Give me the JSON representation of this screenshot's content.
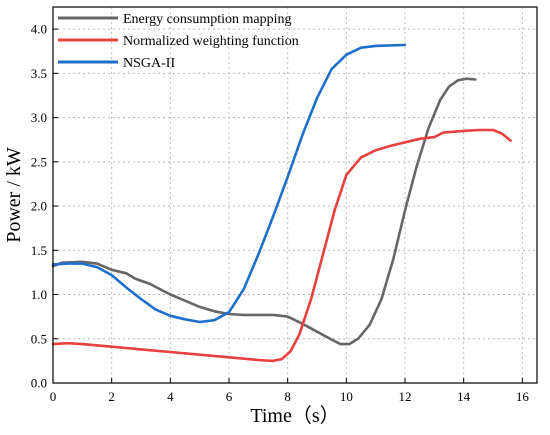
{
  "chart_data": {
    "type": "line",
    "title": "",
    "xlabel": "Time（s）",
    "ylabel": "Power / kW",
    "xlim": [
      0,
      16.5
    ],
    "ylim": [
      0,
      4.25
    ],
    "x_ticks": [
      "0",
      "2",
      "4",
      "6",
      "8",
      "10",
      "12",
      "14",
      "16"
    ],
    "y_ticks": [
      "0.0",
      "0.5",
      "1.0",
      "1.5",
      "2.0",
      "2.5",
      "3.0",
      "3.5",
      "4.0"
    ],
    "grid": true,
    "legend_position": "top-left",
    "series": [
      {
        "name": "Energy consumption mapping",
        "color": "#666666",
        "points": [
          [
            0,
            1.32
          ],
          [
            0.3,
            1.36
          ],
          [
            1,
            1.37
          ],
          [
            1.5,
            1.35
          ],
          [
            2,
            1.28
          ],
          [
            2.5,
            1.24
          ],
          [
            2.8,
            1.18
          ],
          [
            3.3,
            1.12
          ],
          [
            4,
            1.0
          ],
          [
            4.5,
            0.93
          ],
          [
            5,
            0.86
          ],
          [
            5.5,
            0.81
          ],
          [
            6,
            0.78
          ],
          [
            6.5,
            0.77
          ],
          [
            7,
            0.77
          ],
          [
            7.5,
            0.77
          ],
          [
            8,
            0.75
          ],
          [
            8.5,
            0.67
          ],
          [
            9,
            0.58
          ],
          [
            9.5,
            0.49
          ],
          [
            9.8,
            0.44
          ],
          [
            10.1,
            0.44
          ],
          [
            10.4,
            0.5
          ],
          [
            10.8,
            0.66
          ],
          [
            11.2,
            0.95
          ],
          [
            11.6,
            1.4
          ],
          [
            12,
            1.95
          ],
          [
            12.4,
            2.45
          ],
          [
            12.8,
            2.88
          ],
          [
            13.2,
            3.2
          ],
          [
            13.5,
            3.35
          ],
          [
            13.8,
            3.42
          ],
          [
            14.1,
            3.44
          ],
          [
            14.4,
            3.43
          ]
        ]
      },
      {
        "name": "Normalized weighting function",
        "color": "#e8403f",
        "points": [
          [
            0,
            0.44
          ],
          [
            0.5,
            0.45
          ],
          [
            1,
            0.44
          ],
          [
            2,
            0.41
          ],
          [
            3,
            0.38
          ],
          [
            4,
            0.35
          ],
          [
            5,
            0.32
          ],
          [
            6,
            0.29
          ],
          [
            7,
            0.26
          ],
          [
            7.5,
            0.25
          ],
          [
            7.8,
            0.27
          ],
          [
            8.1,
            0.36
          ],
          [
            8.4,
            0.55
          ],
          [
            8.8,
            0.95
          ],
          [
            9.2,
            1.45
          ],
          [
            9.6,
            1.95
          ],
          [
            10,
            2.35
          ],
          [
            10.5,
            2.55
          ],
          [
            11,
            2.63
          ],
          [
            11.5,
            2.68
          ],
          [
            12,
            2.72
          ],
          [
            12.5,
            2.76
          ],
          [
            13,
            2.78
          ],
          [
            13.3,
            2.83
          ],
          [
            14,
            2.85
          ],
          [
            14.5,
            2.86
          ],
          [
            15,
            2.86
          ],
          [
            15.3,
            2.82
          ],
          [
            15.6,
            2.74
          ]
        ]
      },
      {
        "name": "NSGA-II",
        "color": "#1e6fcc",
        "points": [
          [
            0,
            1.34
          ],
          [
            0.5,
            1.35
          ],
          [
            1,
            1.35
          ],
          [
            1.5,
            1.31
          ],
          [
            2,
            1.22
          ],
          [
            2.5,
            1.08
          ],
          [
            3,
            0.95
          ],
          [
            3.5,
            0.83
          ],
          [
            4,
            0.76
          ],
          [
            4.5,
            0.72
          ],
          [
            5,
            0.69
          ],
          [
            5.5,
            0.71
          ],
          [
            6,
            0.8
          ],
          [
            6.5,
            1.06
          ],
          [
            7,
            1.45
          ],
          [
            7.5,
            1.88
          ],
          [
            8,
            2.33
          ],
          [
            8.5,
            2.8
          ],
          [
            9,
            3.22
          ],
          [
            9.5,
            3.55
          ],
          [
            10,
            3.71
          ],
          [
            10.5,
            3.79
          ],
          [
            11,
            3.81
          ],
          [
            12,
            3.82
          ]
        ]
      }
    ]
  }
}
